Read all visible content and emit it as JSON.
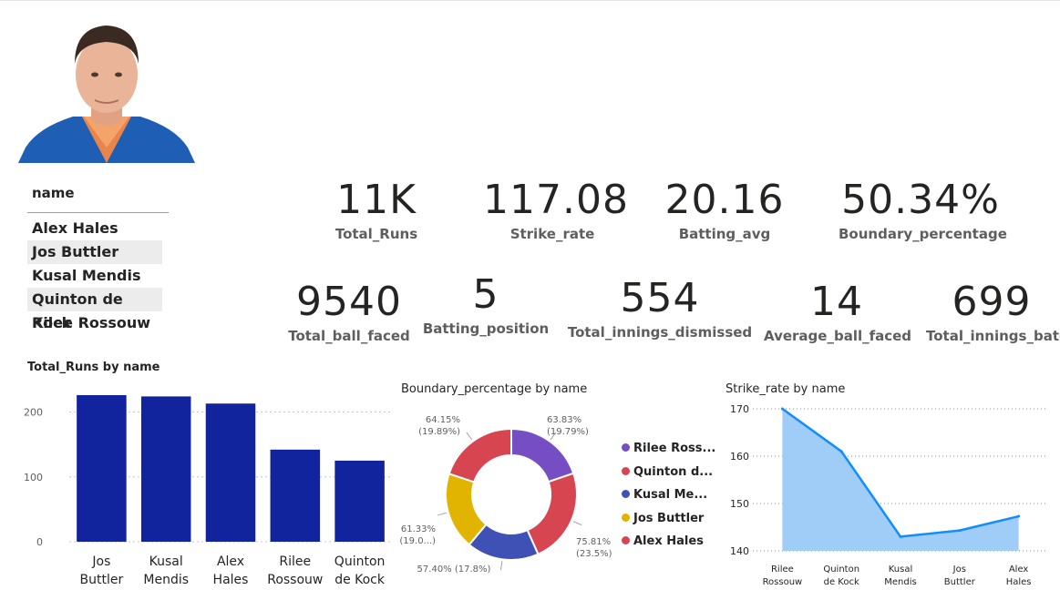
{
  "slicer": {
    "title": "name",
    "items": [
      "Alex Hales",
      "Jos Buttler",
      "Kusal Mendis",
      "Quinton de Kock",
      "Rilee Rossouw"
    ]
  },
  "kpis": {
    "total_runs": {
      "value": "11K",
      "label": "Total_Runs"
    },
    "strike_rate": {
      "value": "117.08",
      "label": "Strike_rate"
    },
    "batting_avg": {
      "value": "20.16",
      "label": "Batting_avg"
    },
    "boundary_percentage": {
      "value": "50.34%",
      "label": "Boundary_percentage"
    },
    "total_ball_faced": {
      "value": "9540",
      "label": "Total_ball_faced"
    },
    "batting_position": {
      "value": "5",
      "label": "Batting_position"
    },
    "total_innings_dismissed": {
      "value": "554",
      "label": "Total_innings_dismissed"
    },
    "average_ball_faced": {
      "value": "14",
      "label": "Average_ball_faced"
    },
    "total_innings_bated": {
      "value": "699",
      "label": "Total_innings_bated"
    }
  },
  "colors": {
    "bar": "#12239e",
    "purple": "#744ec2",
    "red": "#d64550",
    "blue": "#3f51b5",
    "yellow": "#e0b400",
    "area_fill": "#9fcdf7",
    "area_line": "#118dff",
    "grid": "#c8c6c4"
  },
  "chart_data": [
    {
      "type": "bar",
      "title": "Total_Runs by name",
      "categories": [
        "Jos Buttler",
        "Kusal Mendis",
        "Alex Hales",
        "Rilee Rossouw",
        "Quinton de Kock"
      ],
      "category_lines": [
        [
          "Jos",
          "Buttler"
        ],
        [
          "Kusal",
          "Mendis"
        ],
        [
          "Alex",
          "Hales"
        ],
        [
          "Rilee",
          "Rossouw"
        ],
        [
          "Quinton",
          "de Kock"
        ]
      ],
      "values": [
        226,
        224,
        213,
        142,
        125
      ],
      "ylim": [
        0,
        240
      ],
      "yticks": [
        "0",
        "100",
        "200"
      ],
      "grid": true
    },
    {
      "type": "pie",
      "title": "Boundary_percentage by name",
      "donut": true,
      "slices": [
        {
          "name": "Rilee Rossouw",
          "value": 63.83,
          "share": 19.79,
          "label": [
            "63.83%",
            "(19.79%)"
          ],
          "color": "#744ec2"
        },
        {
          "name": "Quinton de Kock",
          "value": 75.81,
          "share": 23.5,
          "label": [
            "75.81%",
            "(23.5%)"
          ],
          "color": "#d64550"
        },
        {
          "name": "Kusal Mendis",
          "value": 57.4,
          "share": 17.8,
          "label": [
            "57.40% (17.8%)"
          ],
          "color": "#3f51b5"
        },
        {
          "name": "Jos Buttler",
          "value": 61.33,
          "share": 19.0,
          "label": [
            "61.33%",
            "(19.0...)"
          ],
          "color": "#e0b400"
        },
        {
          "name": "Alex Hales",
          "value": 64.15,
          "share": 19.89,
          "label": [
            "64.15%",
            "(19.89%)"
          ],
          "color": "#d64550"
        }
      ],
      "legend": [
        "Rilee Ross...",
        "Quinton d...",
        "Kusal Me...",
        "Jos Buttler",
        "Alex Hales"
      ],
      "legend_position": "right"
    },
    {
      "type": "area",
      "title": "Strike_rate by name",
      "categories": [
        "Rilee Rossouw",
        "Quinton de Kock",
        "Kusal Mendis",
        "Jos Buttler",
        "Alex Hales"
      ],
      "category_lines": [
        [
          "Rilee",
          "Rossouw"
        ],
        [
          "Quinton",
          "de Kock"
        ],
        [
          "Kusal",
          "Mendis"
        ],
        [
          "Jos",
          "Buttler"
        ],
        [
          "Alex",
          "Hales"
        ]
      ],
      "values": [
        170,
        161,
        143,
        144.3,
        147.3
      ],
      "ylim": [
        140,
        170
      ],
      "yticks": [
        "140",
        "150",
        "160",
        "170"
      ],
      "grid": true
    }
  ]
}
